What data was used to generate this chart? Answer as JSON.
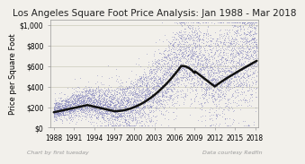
{
  "title": "Los Angeles Square Foot Price Analysis: Jan 1988 - Mar 2018",
  "ylabel": "Price per Square Foot",
  "xlabel": "",
  "yticks": [
    0,
    200,
    400,
    600,
    800,
    1000
  ],
  "ytick_labels": [
    "$0",
    "$200",
    "$400",
    "$600",
    "$800",
    "$1,000"
  ],
  "xticks": [
    1988,
    1991,
    1994,
    1997,
    2000,
    2003,
    2006,
    2009,
    2012,
    2015,
    2018
  ],
  "ylim": [
    0,
    1050
  ],
  "xlim": [
    1987.5,
    2018.5
  ],
  "scatter_color": "#8080bb",
  "line_color": "#111111",
  "bg_color": "#f2f0eb",
  "footnote_left": "Chart by first tuesday",
  "footnote_right": "Data courtesy Redfin",
  "title_fontsize": 7.5,
  "axis_fontsize": 6.0,
  "tick_fontsize": 5.5,
  "footnote_fontsize": 4.5
}
